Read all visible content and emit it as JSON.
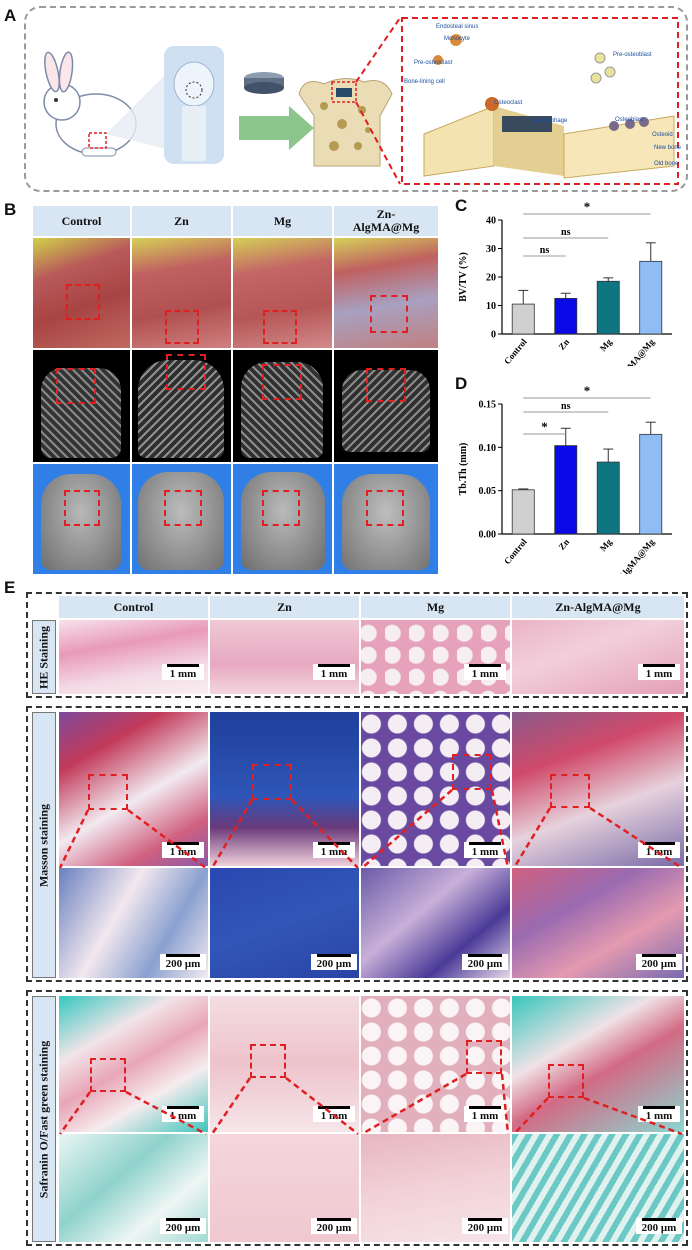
{
  "panels": {
    "a": "A",
    "b": "B",
    "c": "C",
    "d": "D",
    "e": "E"
  },
  "schematic": {
    "labels": [
      "Endosteal sinus",
      "Monocyte",
      "Pre-osteoclast",
      "Bone-lining cell",
      "Osteoclast",
      "Macrophage",
      "Pre-osteoblast",
      "Osteoblast",
      "Osteoid",
      "New bone",
      "Old bone"
    ]
  },
  "groups": [
    "Control",
    "Zn",
    "Mg",
    "Zn-AlgMA@Mg"
  ],
  "groups_wrapped_b": [
    "Control",
    "Zn",
    "Mg",
    "Zn-\nAlgMA@Mg"
  ],
  "stain_rows": [
    "HE Staining",
    "Masson staining",
    "Safranin O/Fast green staining"
  ],
  "scale": {
    "mm": "1 mm",
    "um": "200 μm"
  },
  "colors": {
    "control": "#d0d0d0",
    "zn": "#0a0ae8",
    "mg": "#0f7580",
    "zn_algma": "#8fbcf4",
    "dash_red": "#e02020"
  },
  "chart_data": [
    {
      "type": "bar",
      "title": "",
      "xlabel": "",
      "ylabel": "BV/TV (%)",
      "categories": [
        "Control",
        "Zn",
        "Mg",
        "Zn-AlgMA@Mg"
      ],
      "values": [
        10.5,
        12.5,
        18.5,
        25.5
      ],
      "errors": [
        4.8,
        1.8,
        1.2,
        6.5
      ],
      "ylim": [
        0,
        40
      ],
      "yticks": [
        "0",
        "10",
        "20",
        "30",
        "40"
      ],
      "annotations": [
        {
          "pair": [
            "Control",
            "Zn"
          ],
          "label": "ns"
        },
        {
          "pair": [
            "Control",
            "Mg"
          ],
          "label": "ns"
        },
        {
          "pair": [
            "Control",
            "Zn-AlgMA@Mg"
          ],
          "label": "*"
        }
      ]
    },
    {
      "type": "bar",
      "title": "",
      "xlabel": "",
      "ylabel": "Tb.Th (mm)",
      "categories": [
        "Control",
        "Zn",
        "Mg",
        "Zn-AlgMA@Mg"
      ],
      "values": [
        0.051,
        0.102,
        0.083,
        0.115
      ],
      "errors": [
        0.001,
        0.02,
        0.015,
        0.014
      ],
      "ylim": [
        0,
        0.15
      ],
      "yticks": [
        "0.00",
        "0.05",
        "0.10",
        "0.15"
      ],
      "annotations": [
        {
          "pair": [
            "Control",
            "Zn"
          ],
          "label": "*"
        },
        {
          "pair": [
            "Control",
            "Mg"
          ],
          "label": "ns"
        },
        {
          "pair": [
            "Control",
            "Zn-AlgMA@Mg"
          ],
          "label": "*"
        }
      ]
    }
  ]
}
